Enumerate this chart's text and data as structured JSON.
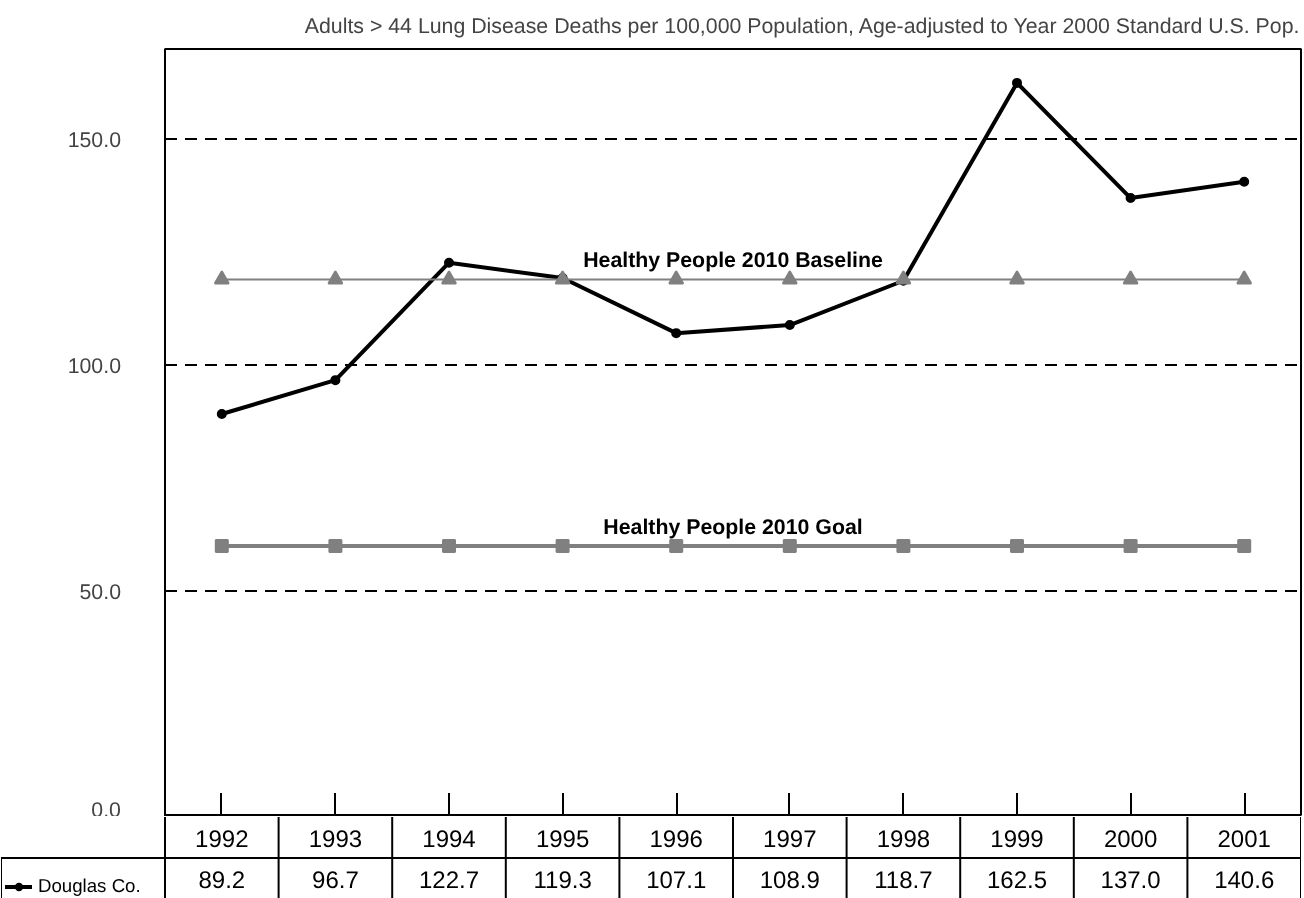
{
  "chart_data": {
    "type": "line",
    "title": "Adults > 44 Lung Disease Deaths per 100,000 Population, Age-adjusted to Year 2000 Standard U.S. Pop.",
    "categories": [
      "1992",
      "1993",
      "1994",
      "1995",
      "1996",
      "1997",
      "1998",
      "1999",
      "2000",
      "2001"
    ],
    "series": [
      {
        "name": "Douglas Co.",
        "color": "#000000",
        "marker": "circle",
        "values": [
          89.2,
          96.7,
          122.7,
          119.3,
          107.1,
          108.9,
          118.7,
          162.5,
          137.0,
          140.6
        ],
        "value_labels": [
          "89.2",
          "96.7",
          "122.7",
          "119.3",
          "107.1",
          "108.9",
          "118.7",
          "162.5",
          "137.0",
          "140.6"
        ]
      },
      {
        "name": "Healthy People 2010 Baseline",
        "color": "#808080",
        "marker": "triangle",
        "values": [
          119,
          119,
          119,
          119,
          119,
          119,
          119,
          119,
          119,
          119
        ]
      },
      {
        "name": "Healthy People 2010 Goal",
        "color": "#808080",
        "marker": "square",
        "values": [
          60,
          60,
          60,
          60,
          60,
          60,
          60,
          60,
          60,
          60
        ]
      }
    ],
    "ylim": [
      0,
      170
    ],
    "yticks": [
      {
        "value": 0,
        "label": "0.0"
      },
      {
        "value": 50,
        "label": "50.0"
      },
      {
        "value": 100,
        "label": "100.0"
      },
      {
        "value": 150,
        "label": "150.0"
      }
    ],
    "grid": "y",
    "legend": "bottom left"
  }
}
